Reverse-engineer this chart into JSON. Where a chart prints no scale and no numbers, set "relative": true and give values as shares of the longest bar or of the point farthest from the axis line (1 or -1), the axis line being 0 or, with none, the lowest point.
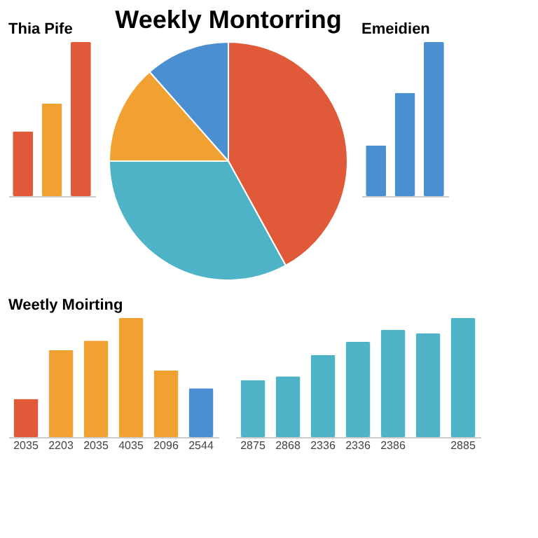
{
  "chart_data": [
    {
      "type": "bar",
      "title": "Thia Pife",
      "categories": [
        null,
        null,
        null
      ],
      "values": [
        0.42,
        0.6,
        1
      ],
      "colors": [
        "#e05a3a",
        "#f0a132",
        "#e05a3a"
      ],
      "relative": true,
      "tick_labels": false
    },
    {
      "type": "pie",
      "title": "Weekly Montorring",
      "categories": [
        null,
        null,
        null,
        null
      ],
      "values": [
        42,
        33,
        13.5,
        11.5
      ],
      "colors": [
        "#e05a3a",
        "#4fb3c8",
        "#f0a132",
        "#4a8fd0"
      ]
    },
    {
      "type": "bar",
      "title": "Emeidien",
      "categories": [
        null,
        null,
        null
      ],
      "values": [
        0.33,
        0.67,
        1
      ],
      "colors": [
        "#4a8fd0",
        "#4a8fd0",
        "#4a8fd0"
      ],
      "relative": true,
      "tick_labels": false
    },
    {
      "type": "bar",
      "title": "Weetly Moirting",
      "categories": [
        "2035",
        "2203",
        "2035",
        "4035",
        "2096",
        "2544"
      ],
      "values": [
        0.32,
        0.73,
        0.81,
        1,
        0.56,
        0.41
      ],
      "colors": [
        "#e05a3a",
        "#f0a132",
        "#f0a132",
        "#f0a132",
        "#f0a132",
        "#4a8fd0"
      ],
      "relative": true,
      "tick_labels": "x"
    },
    {
      "type": "bar",
      "categories": [
        "2875",
        "2868",
        "2336",
        "2336",
        "2386",
        null,
        "2885"
      ],
      "values": [
        0.48,
        0.51,
        0.69,
        0.8,
        0.9,
        0.87,
        1
      ],
      "colors": [
        "#4fb3c8",
        "#4fb3c8",
        "#4fb3c8",
        "#4fb3c8",
        "#4fb3c8",
        "#4fb3c8",
        "#4fb3c8"
      ],
      "relative": true,
      "tick_labels": "x"
    }
  ]
}
